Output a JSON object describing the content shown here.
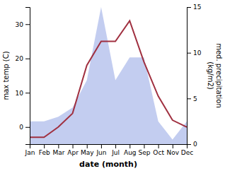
{
  "chart_data": {
    "type": "line",
    "categories": [
      "Jan",
      "Feb",
      "Mar",
      "Apr",
      "May",
      "Jun",
      "Jul",
      "Aug",
      "Sep",
      "Oct",
      "Nov",
      "Dec"
    ],
    "xlabel": "date (month)",
    "ylabel": "max temp (C)",
    "y2label": "med. precipitation\n(kg/m2)",
    "ylim": [
      -5,
      35
    ],
    "yticks": [
      0,
      10,
      20,
      30
    ],
    "y2lim": [
      0,
      15
    ],
    "y2ticks": [
      0,
      5,
      10,
      15
    ],
    "grid": false,
    "series": [
      {
        "type": "area",
        "axis": "y2",
        "color": "#b8c4ed",
        "values": [
          2.5,
          2.5,
          3.0,
          4.0,
          7.0,
          15.0,
          7.0,
          9.5,
          9.5,
          2.5,
          0.5,
          2.5
        ]
      },
      {
        "type": "line",
        "color": "#a03040",
        "values": [
          -3,
          -3,
          0,
          4,
          18,
          25,
          25,
          31,
          19,
          9,
          2,
          0
        ]
      }
    ]
  }
}
